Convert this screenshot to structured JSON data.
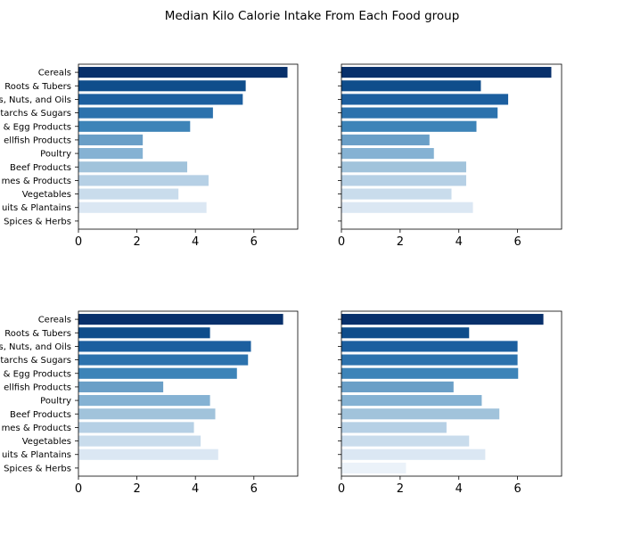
{
  "chart_data": {
    "type": "bar",
    "orientation": "horizontal",
    "title": "Median Kilo Calorie Intake From Each Food group",
    "categories": [
      "Cereals",
      "Roots & Tubers",
      "Pulses, Nuts, and Oils",
      "Starchs & Sugars",
      "Milk & Egg Products",
      "Fish & Shellfish Products",
      "Poultry",
      "Beef Products",
      "Legumes & Products",
      "Vegetables",
      "Fruits & Plantains",
      "Spices & Herbs"
    ],
    "category_labels_visible": [
      "Cereals",
      "Roots & Tubers",
      "s, Nuts, and Oils",
      "tarchs & Sugars",
      "& Egg Products",
      "ellfish Products",
      "Poultry",
      "Beef Products",
      "mes & Products",
      "Vegetables",
      "uits & Plantains",
      "Spices & Herbs"
    ],
    "colors": [
      "#08306b",
      "#0f4d8b",
      "#1c5f9f",
      "#2c72ad",
      "#3d84b8",
      "#6a9fc7",
      "#85b2d3",
      "#a1c3db",
      "#b6d0e5",
      "#c9dcec",
      "#dbe7f3",
      "#ebf2f9"
    ],
    "xlim": [
      0,
      7.5
    ],
    "xticks": [
      0,
      2,
      4,
      6
    ],
    "grid": false,
    "subplots": [
      {
        "name": "top-left",
        "values": [
          7.15,
          5.72,
          5.62,
          4.6,
          3.82,
          2.2,
          2.2,
          3.72,
          4.45,
          3.42,
          4.38,
          0.0
        ]
      },
      {
        "name": "top-right",
        "values": [
          7.15,
          4.75,
          5.68,
          5.32,
          4.6,
          3.0,
          3.15,
          4.25,
          4.25,
          3.75,
          4.48,
          0.0
        ]
      },
      {
        "name": "bottom-left",
        "values": [
          7.0,
          4.5,
          5.9,
          5.8,
          5.42,
          2.9,
          4.5,
          4.68,
          3.95,
          4.18,
          4.78,
          0.0
        ]
      },
      {
        "name": "bottom-right",
        "values": [
          6.88,
          4.35,
          6.0,
          6.0,
          6.02,
          3.82,
          4.78,
          5.38,
          3.58,
          4.35,
          4.9,
          2.2
        ]
      }
    ]
  }
}
